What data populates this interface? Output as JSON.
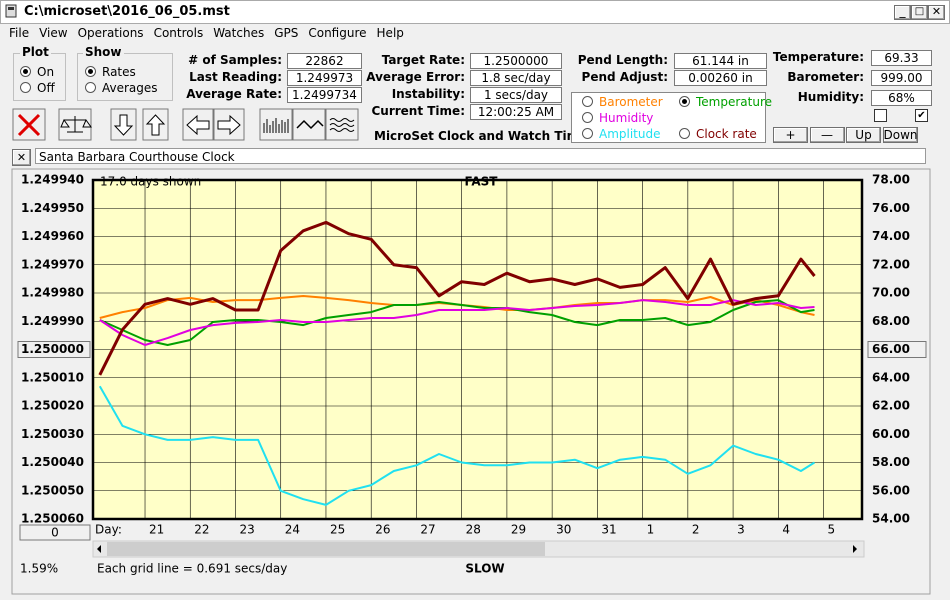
{
  "window": {
    "title": "C:\\microset\\2016_06_05.mst"
  },
  "menu": [
    "File",
    "View",
    "Operations",
    "Controls",
    "Watches",
    "GPS",
    "Configure",
    "Help"
  ],
  "plot_group": {
    "title": "Plot",
    "options": [
      "On",
      "Off"
    ],
    "selected": 0
  },
  "show_group": {
    "title": "Show",
    "options": [
      "Rates",
      "Averages"
    ],
    "selected": 0
  },
  "fields": [
    {
      "label": "# of Samples:",
      "value": "22862"
    },
    {
      "label": "Last Reading:",
      "value": "1.249973"
    },
    {
      "label": "Average Rate:",
      "value": "1.2499734"
    },
    {
      "label": "Target Rate:",
      "value": "1.2500000"
    },
    {
      "label": "Average Error:",
      "value": "1.8 sec/day"
    },
    {
      "label": "Instability:",
      "value": "1 secs/day"
    },
    {
      "label": "Current Time:",
      "value": "12:00:25 AM"
    },
    {
      "label": "Pend Length:",
      "value": "61.144 in"
    },
    {
      "label": "Pend Adjust:",
      "value": "0.00260 in"
    },
    {
      "label": "Temperature:",
      "value": "69.33"
    },
    {
      "label": "Barometer:",
      "value": "999.00"
    },
    {
      "label": "Humidity:",
      "value": "68%"
    }
  ],
  "app_name": "MicroSet Clock and Watch Timer",
  "adjust_buttons": [
    "+",
    "—",
    "Up",
    "Down"
  ],
  "watch_name": "Santa Barbara Courthouse Clock",
  "chart_data": {
    "type": "line",
    "days_shown": "17.0 days shown",
    "top_label": "FAST",
    "bottom_label": "SLOW",
    "x_label": "Day:",
    "grid_note": "Each grid line = 0.691 secs/day",
    "scroll_value": "0",
    "status": "1.59%",
    "selected_series": 1,
    "grid": true,
    "x": [
      20,
      20.5,
      21,
      21.5,
      22,
      22.5,
      23,
      23.5,
      24,
      24.5,
      25,
      25.5,
      26,
      26.5,
      27,
      27.5,
      28,
      28.5,
      29,
      29.5,
      30,
      30.5,
      31,
      31.5,
      32,
      32.5,
      33,
      33.5,
      34,
      34.5,
      35,
      35.5,
      35.8
    ],
    "xlim": [
      19.85,
      36.85
    ],
    "xticks": [
      21,
      22,
      23,
      24,
      25,
      26,
      27,
      28,
      29,
      30,
      31,
      {
        "value": 32,
        "label": "1"
      },
      {
        "value": 33,
        "label": "2"
      },
      {
        "value": 34,
        "label": "3"
      },
      {
        "value": 35,
        "label": "4"
      },
      {
        "value": 36,
        "label": "5"
      }
    ],
    "ylim": [
      1.25006,
      1.24994
    ],
    "yticks": [
      {
        "value": 1.24994,
        "label": "1.249940"
      },
      {
        "value": 1.24995,
        "label": "1.249950"
      },
      {
        "value": 1.24996,
        "label": "1.249960"
      },
      {
        "value": 1.24997,
        "label": "1.249970"
      },
      {
        "value": 1.24998,
        "label": "1.249980"
      },
      {
        "value": 1.24999,
        "label": "1.249990"
      },
      {
        "value": 1.25,
        "label": "1.250000"
      },
      {
        "value": 1.25001,
        "label": "1.250010"
      },
      {
        "value": 1.25002,
        "label": "1.250020"
      },
      {
        "value": 1.25003,
        "label": "1.250030"
      },
      {
        "value": 1.25004,
        "label": "1.250040"
      },
      {
        "value": 1.25005,
        "label": "1.250050"
      },
      {
        "value": 1.25006,
        "label": "1.250060"
      }
    ],
    "y2lim": [
      54,
      78
    ],
    "y2ticks": [
      {
        "value": 78,
        "label": "78.00"
      },
      {
        "value": 76,
        "label": "76.00"
      },
      {
        "value": 74,
        "label": "74.00"
      },
      {
        "value": 72,
        "label": "72.00"
      },
      {
        "value": 70,
        "label": "70.00"
      },
      {
        "value": 68,
        "label": "68.00"
      },
      {
        "value": 66,
        "label": "66.00"
      },
      {
        "value": 64,
        "label": "64.00"
      },
      {
        "value": 62,
        "label": "62.00"
      },
      {
        "value": 60,
        "label": "60.00"
      },
      {
        "value": 58,
        "label": "58.00"
      },
      {
        "value": 56,
        "label": "56.00"
      },
      {
        "value": 54,
        "label": "54.00"
      }
    ],
    "center_tick": 6,
    "series": [
      {
        "name": "Barometer",
        "color": "#ff8000",
        "axis": "y2",
        "values": [
          68.23,
          68.65,
          68.94,
          69.5,
          69.65,
          69.36,
          69.5,
          69.5,
          69.65,
          69.79,
          69.65,
          69.5,
          69.29,
          69.15,
          69.15,
          69.29,
          69.15,
          69.01,
          68.8,
          68.8,
          68.94,
          69.15,
          69.29,
          69.29,
          69.5,
          69.5,
          69.36,
          69.72,
          69.15,
          69.5,
          69.15,
          68.65,
          68.44
        ]
      },
      {
        "name": "Temperature",
        "color": "#00a000",
        "axis": "y2",
        "values": [
          68.09,
          67.38,
          66.67,
          66.32,
          66.67,
          67.95,
          68.09,
          68.09,
          67.95,
          67.73,
          68.23,
          68.44,
          68.65,
          69.15,
          69.15,
          69.36,
          69.15,
          68.94,
          68.94,
          68.65,
          68.44,
          67.95,
          67.73,
          68.09,
          68.09,
          68.23,
          67.73,
          67.95,
          68.8,
          69.36,
          69.5,
          68.65,
          68.8
        ]
      },
      {
        "name": "Humidity",
        "color": "#e000e0",
        "axis": "y2",
        "values": [
          68.09,
          67.03,
          66.32,
          66.81,
          67.38,
          67.73,
          67.88,
          67.95,
          68.09,
          67.95,
          67.95,
          68.09,
          68.23,
          68.23,
          68.44,
          68.8,
          68.8,
          68.8,
          68.94,
          68.8,
          68.94,
          69.08,
          69.15,
          69.29,
          69.5,
          69.36,
          69.15,
          69.15,
          69.5,
          69.15,
          69.29,
          68.94,
          69.01
        ]
      },
      {
        "name": "Amplitude",
        "color": "#20e0f0",
        "values": [
          1.250013,
          1.250027,
          1.25003,
          1.250032,
          1.250032,
          1.250031,
          1.250032,
          1.250032,
          1.25005,
          1.250053,
          1.250055,
          1.25005,
          1.250048,
          1.250043,
          1.250041,
          1.250037,
          1.25004,
          1.250041,
          1.250041,
          1.25004,
          1.25004,
          1.250039,
          1.250042,
          1.250039,
          1.250038,
          1.250039,
          1.250044,
          1.250041,
          1.250034,
          1.250037,
          1.250039,
          1.250043,
          1.25004
        ]
      },
      {
        "name": "Clock rate",
        "color": "#800000",
        "values": [
          1.250009,
          1.249993,
          1.249984,
          1.249982,
          1.249984,
          1.249982,
          1.249986,
          1.249986,
          1.249965,
          1.249958,
          1.249955,
          1.249959,
          1.249961,
          1.24997,
          1.249971,
          1.249981,
          1.249976,
          1.249977,
          1.249973,
          1.249976,
          1.249975,
          1.249977,
          1.249975,
          1.249978,
          1.249977,
          1.249971,
          1.249982,
          1.249968,
          1.249984,
          1.249982,
          1.249981,
          1.249968,
          1.249974
        ]
      }
    ]
  }
}
